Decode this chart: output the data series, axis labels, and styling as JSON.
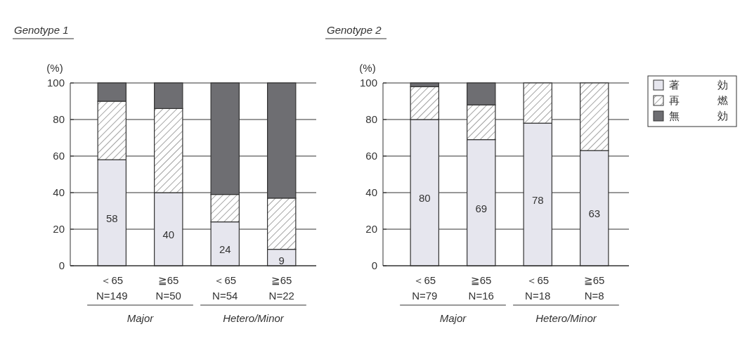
{
  "chart_data": [
    {
      "type": "bar",
      "title": "Genotype 1",
      "ylabel": "(%)",
      "stacked": true,
      "categories": [
        "＜65\nN=149",
        "≧65\nN=50",
        "＜65\nN=54",
        "≧65\nN=22"
      ],
      "series": [
        {
          "color": "#e6e6ee",
          "values": [
            58,
            40,
            24,
            9
          ],
          "value_labels": [
            "58",
            "40",
            "24",
            "9"
          ]
        },
        {
          "color": "#ffffff",
          "values": [
            32,
            46,
            15,
            28
          ]
        },
        {
          "color": "#6e6e72",
          "values": [
            10,
            14,
            61,
            63
          ]
        }
      ],
      "ylim": [
        0,
        100
      ],
      "yticks": [
        0,
        20,
        40,
        60,
        80,
        100
      ],
      "grid": "y",
      "legend": false,
      "annotations": [
        "Major",
        "Hetero/Minor"
      ]
    },
    {
      "type": "bar",
      "title": "Genotype 2",
      "ylabel": "(%)",
      "stacked": true,
      "categories": [
        "＜65\nN=79",
        "≧65\nN=16",
        "＜65\nN=18",
        "≧65\nN=8"
      ],
      "series": [
        {
          "name": "著　効",
          "color": "#e6e6ee",
          "values": [
            80,
            69,
            78,
            63
          ],
          "value_labels": [
            "80",
            "69",
            "78",
            "63"
          ]
        },
        {
          "name": "再　燃",
          "color": "#ffffff",
          "values": [
            18,
            19,
            22,
            37
          ]
        },
        {
          "name": "無　効",
          "color": "#6e6e72",
          "values": [
            2,
            12,
            0,
            0
          ]
        }
      ],
      "ylim": [
        0,
        100
      ],
      "yticks": [
        0,
        20,
        40,
        60,
        80,
        100
      ],
      "grid": "y",
      "legend": "right",
      "annotations": [
        "Major",
        "Hetero/Minor"
      ]
    }
  ]
}
